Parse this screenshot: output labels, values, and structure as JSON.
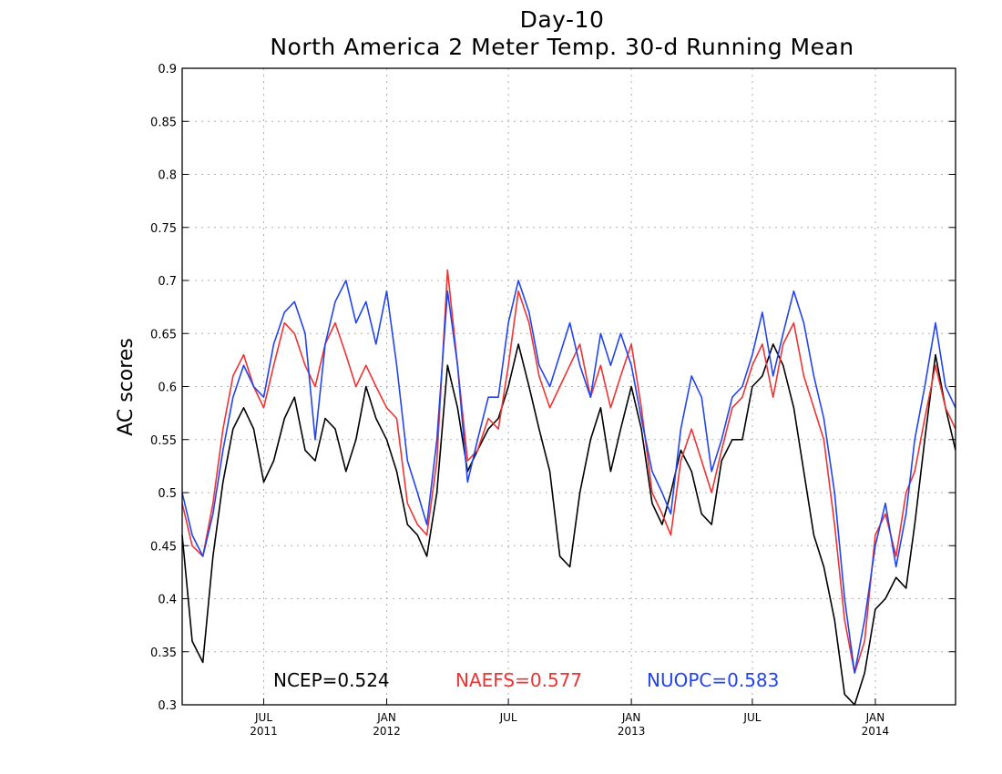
{
  "chart_data": {
    "type": "line",
    "title": "Day-10",
    "subtitle": "North America 2 Meter Temp. 30-d Running Mean",
    "xlabel": "",
    "ylabel": "AC scores",
    "ylim": [
      0.3,
      0.9
    ],
    "yticks": [
      "0.3",
      "0.35",
      "0.4",
      "0.45",
      "0.5",
      "0.55",
      "0.6",
      "0.65",
      "0.7",
      "0.75",
      "0.8",
      "0.85",
      "0.9"
    ],
    "xlim": [
      "2011-03-01",
      "2014-05-01"
    ],
    "xticks": [
      {
        "date": "2011-07-01",
        "month": "JUL",
        "year": "2011"
      },
      {
        "date": "2012-01-01",
        "month": "JAN",
        "year": "2012"
      },
      {
        "date": "2012-07-01",
        "month": "JUL",
        "year": ""
      },
      {
        "date": "2013-01-01",
        "month": "JAN",
        "year": "2013"
      },
      {
        "date": "2013-07-01",
        "month": "JUL",
        "year": ""
      },
      {
        "date": "2014-01-01",
        "month": "JAN",
        "year": "2014"
      }
    ],
    "grid": true,
    "legend": [
      {
        "text": "NCEP=0.524",
        "color": "#000000"
      },
      {
        "text": "NAEFS=0.577",
        "color": "#ee3333"
      },
      {
        "text": "NUOPC=0.583",
        "color": "#2244ee"
      }
    ],
    "x": [
      "2011-03-01",
      "2011-03-16",
      "2011-04-01",
      "2011-04-16",
      "2011-05-01",
      "2011-05-16",
      "2011-06-01",
      "2011-06-16",
      "2011-07-01",
      "2011-07-16",
      "2011-08-01",
      "2011-08-16",
      "2011-09-01",
      "2011-09-16",
      "2011-10-01",
      "2011-10-16",
      "2011-11-01",
      "2011-11-16",
      "2011-12-01",
      "2011-12-16",
      "2012-01-01",
      "2012-01-16",
      "2012-02-01",
      "2012-02-16",
      "2012-03-01",
      "2012-03-16",
      "2012-04-01",
      "2012-04-16",
      "2012-05-01",
      "2012-05-16",
      "2012-06-01",
      "2012-06-16",
      "2012-07-01",
      "2012-07-16",
      "2012-08-01",
      "2012-08-16",
      "2012-09-01",
      "2012-09-16",
      "2012-10-01",
      "2012-10-16",
      "2012-11-01",
      "2012-11-16",
      "2012-12-01",
      "2012-12-16",
      "2013-01-01",
      "2013-01-16",
      "2013-02-01",
      "2013-02-16",
      "2013-03-01",
      "2013-03-16",
      "2013-04-01",
      "2013-04-16",
      "2013-05-01",
      "2013-05-16",
      "2013-06-01",
      "2013-06-16",
      "2013-07-01",
      "2013-07-16",
      "2013-08-01",
      "2013-08-16",
      "2013-09-01",
      "2013-09-16",
      "2013-10-01",
      "2013-10-16",
      "2013-11-01",
      "2013-11-16",
      "2013-12-01",
      "2013-12-16",
      "2014-01-01",
      "2014-01-16",
      "2014-02-01",
      "2014-02-16",
      "2014-03-01",
      "2014-03-16",
      "2014-04-01",
      "2014-04-16",
      "2014-05-01"
    ],
    "series": [
      {
        "name": "NCEP",
        "color": "#000000",
        "values": [
          0.46,
          0.36,
          0.34,
          0.44,
          0.51,
          0.56,
          0.58,
          0.56,
          0.51,
          0.53,
          0.57,
          0.59,
          0.54,
          0.53,
          0.57,
          0.56,
          0.52,
          0.55,
          0.6,
          0.57,
          0.55,
          0.52,
          0.47,
          0.46,
          0.44,
          0.5,
          0.62,
          0.58,
          0.52,
          0.54,
          0.56,
          0.57,
          0.6,
          0.64,
          0.6,
          0.56,
          0.52,
          0.44,
          0.43,
          0.5,
          0.55,
          0.58,
          0.52,
          0.56,
          0.6,
          0.56,
          0.49,
          0.47,
          0.5,
          0.54,
          0.52,
          0.48,
          0.47,
          0.53,
          0.55,
          0.55,
          0.6,
          0.61,
          0.64,
          0.62,
          0.58,
          0.52,
          0.46,
          0.43,
          0.38,
          0.31,
          0.3,
          0.33,
          0.39,
          0.4,
          0.42,
          0.41,
          0.47,
          0.55,
          0.63,
          0.58,
          0.54
        ]
      },
      {
        "name": "NAEFS",
        "color": "#ee3333",
        "values": [
          0.49,
          0.45,
          0.44,
          0.49,
          0.56,
          0.61,
          0.63,
          0.6,
          0.58,
          0.62,
          0.66,
          0.65,
          0.62,
          0.6,
          0.64,
          0.66,
          0.63,
          0.6,
          0.62,
          0.6,
          0.58,
          0.57,
          0.49,
          0.47,
          0.46,
          0.53,
          0.71,
          0.62,
          0.53,
          0.54,
          0.57,
          0.56,
          0.62,
          0.69,
          0.66,
          0.61,
          0.58,
          0.6,
          0.62,
          0.64,
          0.59,
          0.62,
          0.58,
          0.61,
          0.64,
          0.58,
          0.5,
          0.48,
          0.46,
          0.53,
          0.56,
          0.53,
          0.5,
          0.54,
          0.58,
          0.59,
          0.62,
          0.64,
          0.59,
          0.64,
          0.66,
          0.61,
          0.58,
          0.55,
          0.47,
          0.38,
          0.33,
          0.36,
          0.46,
          0.48,
          0.44,
          0.5,
          0.52,
          0.57,
          0.62,
          0.58,
          0.56
        ]
      },
      {
        "name": "NUOPC",
        "color": "#2244ee",
        "values": [
          0.5,
          0.46,
          0.44,
          0.48,
          0.54,
          0.59,
          0.62,
          0.6,
          0.59,
          0.64,
          0.67,
          0.68,
          0.65,
          0.55,
          0.64,
          0.68,
          0.7,
          0.66,
          0.68,
          0.64,
          0.69,
          0.62,
          0.53,
          0.5,
          0.47,
          0.55,
          0.69,
          0.62,
          0.51,
          0.55,
          0.59,
          0.59,
          0.66,
          0.7,
          0.67,
          0.62,
          0.6,
          0.63,
          0.66,
          0.62,
          0.59,
          0.65,
          0.62,
          0.65,
          0.62,
          0.57,
          0.52,
          0.5,
          0.48,
          0.56,
          0.61,
          0.59,
          0.52,
          0.55,
          0.59,
          0.6,
          0.63,
          0.67,
          0.61,
          0.65,
          0.69,
          0.66,
          0.61,
          0.57,
          0.5,
          0.4,
          0.33,
          0.38,
          0.45,
          0.49,
          0.43,
          0.48,
          0.55,
          0.6,
          0.66,
          0.6,
          0.58
        ]
      }
    ]
  }
}
